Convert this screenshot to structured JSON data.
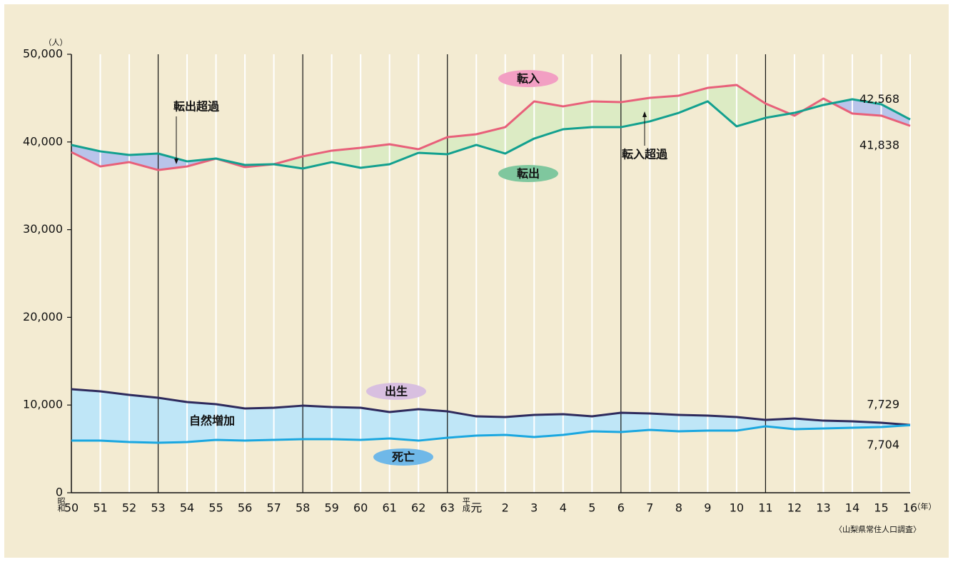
{
  "chart_data": {
    "type": "line",
    "y_unit": "（人）",
    "x_unit": "（年）",
    "source": "〈山梨県常住人口調査〉",
    "era_labels": [
      "昭和",
      "平成"
    ],
    "categories": [
      "50",
      "51",
      "52",
      "53",
      "54",
      "55",
      "56",
      "57",
      "58",
      "59",
      "60",
      "61",
      "62",
      "63",
      "元",
      "2",
      "3",
      "4",
      "5",
      "6",
      "7",
      "8",
      "9",
      "10",
      "11",
      "12",
      "13",
      "14",
      "15",
      "16"
    ],
    "series": [
      {
        "name": "転入",
        "color": "#e8607a",
        "label_color": "#f29fc3",
        "values": [
          38840,
          37210,
          37700,
          36800,
          37210,
          38110,
          37130,
          37460,
          38360,
          39010,
          39330,
          39740,
          39170,
          40550,
          40880,
          41690,
          44630,
          44060,
          44630,
          44540,
          45030,
          45280,
          46170,
          46500,
          44380,
          43000,
          44950,
          43240,
          43000,
          41838
        ],
        "value_labels": [
          null,
          null,
          null,
          null,
          null,
          null,
          null,
          null,
          null,
          null,
          null,
          null,
          null,
          null,
          null,
          null,
          null,
          null,
          null,
          null,
          null,
          null,
          null,
          null,
          null,
          null,
          null,
          null,
          null,
          "41,838"
        ]
      },
      {
        "name": "転出",
        "color": "#12a08f",
        "label_color": "#7fc79e",
        "values": [
          39660,
          38930,
          38520,
          38680,
          37790,
          38110,
          37380,
          37460,
          36970,
          37700,
          37050,
          37460,
          38760,
          38600,
          39660,
          38680,
          40390,
          41450,
          41690,
          41690,
          42350,
          43320,
          44630,
          41780,
          42750,
          43320,
          44220,
          44870,
          44300,
          42568
        ],
        "value_labels": [
          null,
          null,
          null,
          null,
          null,
          null,
          null,
          null,
          null,
          null,
          null,
          null,
          null,
          null,
          null,
          null,
          null,
          null,
          null,
          null,
          null,
          null,
          null,
          null,
          null,
          null,
          null,
          null,
          null,
          "42,568"
        ]
      },
      {
        "name": "出生",
        "color": "#2e2a5c",
        "label_color": "#d8bfe0",
        "values": [
          11810,
          11560,
          11160,
          10830,
          10340,
          10100,
          9610,
          9690,
          9930,
          9770,
          9690,
          9200,
          9530,
          9280,
          8710,
          8630,
          8880,
          8960,
          8710,
          9120,
          9040,
          8880,
          8790,
          8630,
          8310,
          8470,
          8220,
          8140,
          7980,
          7729
        ],
        "value_labels": [
          null,
          null,
          null,
          null,
          null,
          null,
          null,
          null,
          null,
          null,
          null,
          null,
          null,
          null,
          null,
          null,
          null,
          null,
          null,
          null,
          null,
          null,
          null,
          null,
          null,
          null,
          null,
          null,
          null,
          "7,729"
        ]
      },
      {
        "name": "死亡",
        "color": "#1aa7e0",
        "label_color": "#6fb8e8",
        "values": [
          5940,
          5940,
          5780,
          5700,
          5780,
          6030,
          5940,
          6030,
          6110,
          6110,
          6030,
          6190,
          5940,
          6270,
          6510,
          6600,
          6350,
          6600,
          7000,
          6920,
          7170,
          7000,
          7080,
          7080,
          7570,
          7250,
          7330,
          7410,
          7490,
          7704
        ],
        "value_labels": [
          null,
          null,
          null,
          null,
          null,
          null,
          null,
          null,
          null,
          null,
          null,
          null,
          null,
          null,
          null,
          null,
          null,
          null,
          null,
          null,
          null,
          null,
          null,
          null,
          null,
          null,
          null,
          null,
          null,
          "7,704"
        ]
      }
    ],
    "annotations": [
      "転出超過",
      "転入超過",
      "自然増加"
    ],
    "ylim": [
      0,
      50000
    ],
    "yticks": [
      0,
      {
        "value": 10000,
        "label": "10,000"
      },
      {
        "value": 20000,
        "label": "20,000"
      },
      {
        "value": 30000,
        "label": "30,000"
      },
      {
        "value": 40000,
        "label": "40,000"
      },
      {
        "value": 50000,
        "label": "50,000"
      }
    ]
  }
}
